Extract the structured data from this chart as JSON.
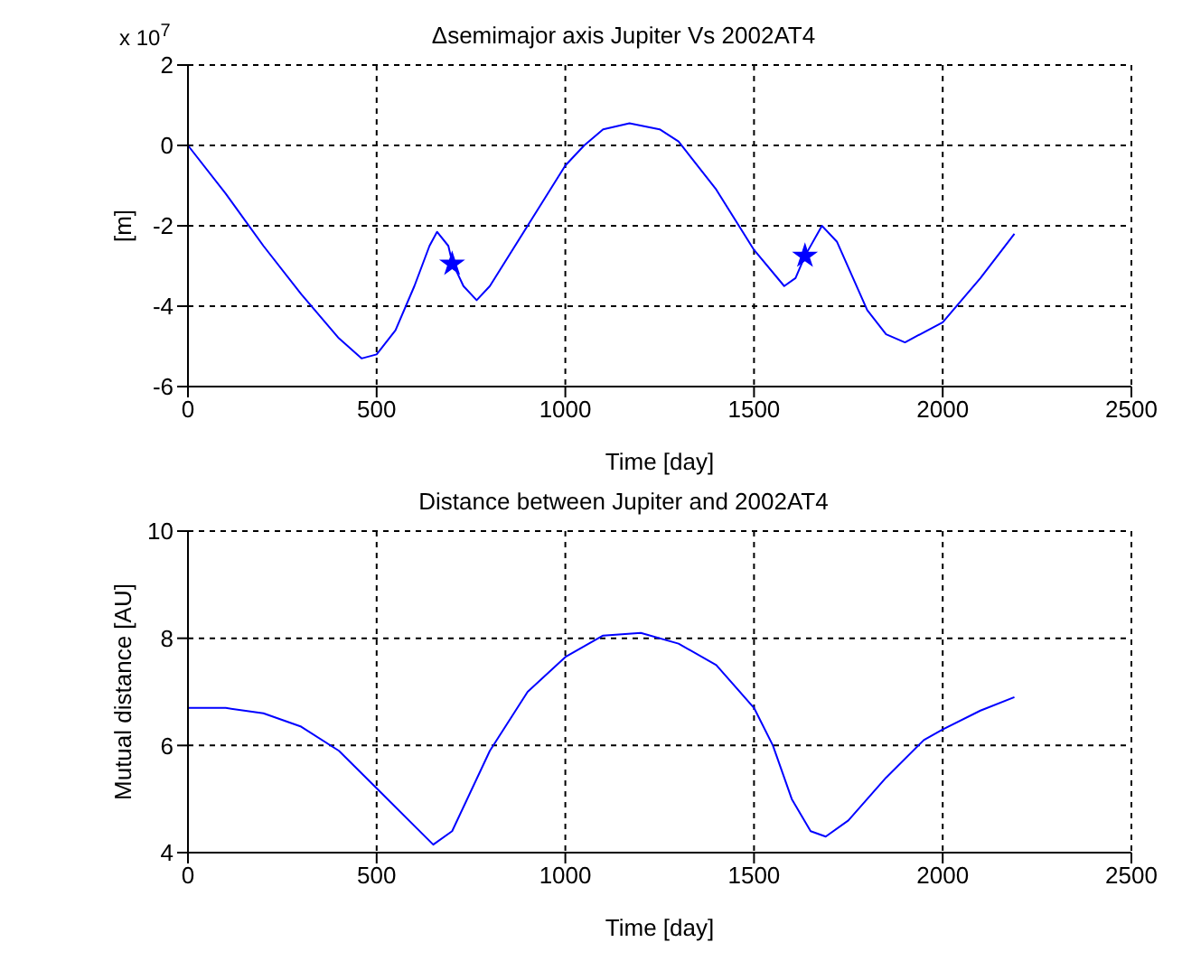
{
  "chart_data": [
    {
      "type": "line",
      "title": "Δsemimajor axis Jupiter Vs 2002AT4",
      "xlabel": "Time [day]",
      "ylabel": "[m]",
      "annotations": [
        "x 10$^{7}$"
      ],
      "xlim": [
        0,
        2500
      ],
      "xticks": [
        0,
        500,
        1000,
        1500,
        2000,
        2500
      ],
      "ylim": [
        -6,
        2
      ],
      "yticks": [
        -6,
        -4,
        -2,
        0,
        2
      ],
      "grid": true,
      "line_style": "solid",
      "series": [
        {
          "color": "#0000ff",
          "marker": "none",
          "x": [
            0,
            100,
            200,
            300,
            400,
            460,
            500,
            550,
            600,
            640,
            660,
            690,
            700,
            730,
            765,
            800,
            900,
            1000,
            1050,
            1100,
            1170,
            1250,
            1300,
            1400,
            1500,
            1580,
            1610,
            1635,
            1680,
            1720,
            1800,
            1850,
            1900,
            2000,
            2100,
            2190
          ],
          "values": [
            0,
            -1.2,
            -2.5,
            -3.7,
            -4.8,
            -5.3,
            -5.2,
            -4.6,
            -3.5,
            -2.5,
            -2.15,
            -2.5,
            -2.9,
            -3.5,
            -3.85,
            -3.5,
            -2.0,
            -0.5,
            0.0,
            0.4,
            0.55,
            0.4,
            0.1,
            -1.1,
            -2.6,
            -3.5,
            -3.3,
            -2.75,
            -2.0,
            -2.4,
            -4.1,
            -4.7,
            -4.9,
            -4.4,
            -3.3,
            -2.2
          ]
        },
        {
          "type": "scatter",
          "color": "#0000ff",
          "marker": "star",
          "x": [
            700,
            1635
          ],
          "values": [
            -2.95,
            -2.75
          ]
        }
      ]
    },
    {
      "type": "line",
      "title": "Distance between Jupiter and 2002AT4",
      "xlabel": "Time [day]",
      "ylabel": "Mutual distance [AU]",
      "xlim": [
        0,
        2500
      ],
      "xticks": [
        0,
        500,
        1000,
        1500,
        2000,
        2500
      ],
      "ylim": [
        4,
        10
      ],
      "yticks": [
        4,
        6,
        8,
        10
      ],
      "grid": true,
      "line_style": "solid",
      "series": [
        {
          "color": "#0000ff",
          "marker": "none",
          "x": [
            0,
            100,
            200,
            300,
            400,
            500,
            600,
            650,
            700,
            800,
            900,
            1000,
            1100,
            1200,
            1300,
            1400,
            1500,
            1550,
            1600,
            1650,
            1690,
            1750,
            1850,
            1950,
            2000,
            2100,
            2190
          ],
          "values": [
            6.7,
            6.7,
            6.6,
            6.35,
            5.9,
            5.2,
            4.5,
            4.15,
            4.4,
            5.9,
            7.0,
            7.65,
            8.05,
            8.1,
            7.9,
            7.5,
            6.7,
            6.0,
            5.0,
            4.4,
            4.3,
            4.6,
            5.4,
            6.1,
            6.3,
            6.65,
            6.9
          ]
        }
      ]
    }
  ]
}
